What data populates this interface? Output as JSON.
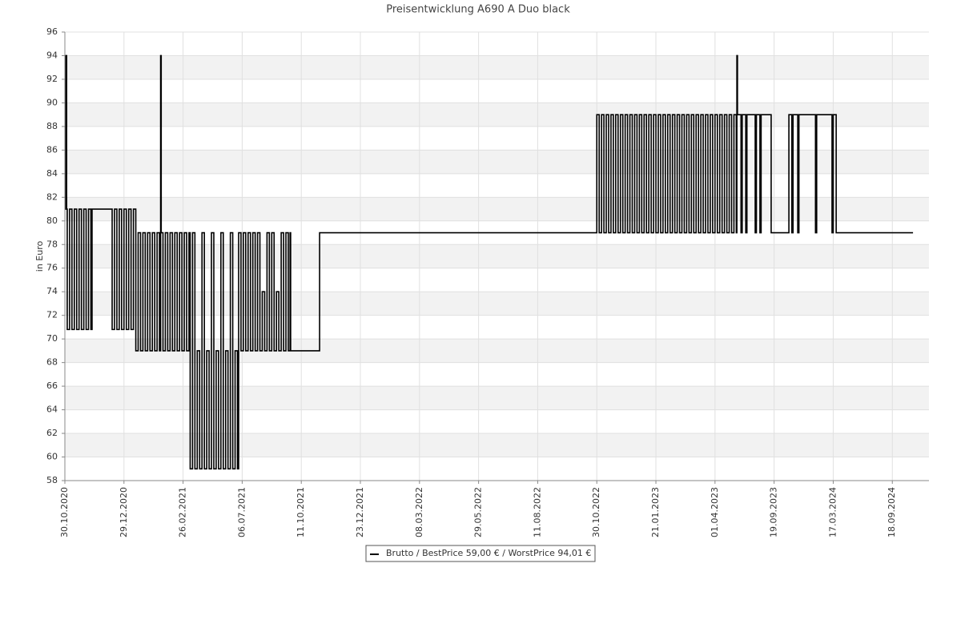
{
  "chart_data": {
    "type": "line",
    "step": true,
    "title": "Preisentwicklung A690 A Duo black",
    "y_label": "in Euro",
    "xlim": [
      0,
      14.62
    ],
    "ylim": [
      58,
      96
    ],
    "grid": true,
    "xticks": [
      {
        "value": 0,
        "label": "30.10.2020"
      },
      {
        "value": 1,
        "label": "29.12.2020"
      },
      {
        "value": 2,
        "label": "26.02.2021"
      },
      {
        "value": 3,
        "label": "06.07.2021"
      },
      {
        "value": 4,
        "label": "11.10.2021"
      },
      {
        "value": 5,
        "label": "23.12.2021"
      },
      {
        "value": 6,
        "label": "08.03.2022"
      },
      {
        "value": 7,
        "label": "29.05.2022"
      },
      {
        "value": 8,
        "label": "11.08.2022"
      },
      {
        "value": 9,
        "label": "30.10.2022"
      },
      {
        "value": 10,
        "label": "21.01.2023"
      },
      {
        "value": 11,
        "label": "01.04.2023"
      },
      {
        "value": 12,
        "label": "19.09.2023"
      },
      {
        "value": 13,
        "label": "17.03.2024"
      },
      {
        "value": 14,
        "label": "18.09.2024"
      }
    ],
    "yticks": [
      58,
      60,
      62,
      64,
      66,
      68,
      70,
      72,
      74,
      76,
      78,
      80,
      82,
      84,
      86,
      88,
      90,
      92,
      94,
      96
    ],
    "series": [
      {
        "name": "Brutto / BestPrice  59,00 € / WorstPrice  94,01 €",
        "color": "#000000",
        "x": [
          0,
          0.01,
          0.02,
          0.03,
          0.04,
          0.08,
          0.12,
          0.16,
          0.2,
          0.24,
          0.28,
          0.32,
          0.36,
          0.4,
          0.44,
          0.46,
          0.8,
          0.84,
          0.88,
          0.92,
          0.96,
          1,
          1.04,
          1.08,
          1.12,
          1.16,
          1.2,
          1.24,
          1.28,
          1.32,
          1.36,
          1.4,
          1.44,
          1.48,
          1.52,
          1.56,
          1.6,
          1.62,
          1.63,
          1.66,
          1.7,
          1.74,
          1.78,
          1.82,
          1.86,
          1.9,
          1.94,
          1.98,
          2.02,
          2.06,
          2.1,
          2.12,
          2.16,
          2.2,
          2.24,
          2.28,
          2.32,
          2.36,
          2.4,
          2.44,
          2.48,
          2.52,
          2.56,
          2.6,
          2.64,
          2.68,
          2.72,
          2.76,
          2.8,
          2.84,
          2.88,
          2.92,
          2.94,
          2.98,
          3.02,
          3.06,
          3.1,
          3.14,
          3.18,
          3.22,
          3.26,
          3.3,
          3.34,
          3.38,
          3.42,
          3.46,
          3.5,
          3.54,
          3.58,
          3.62,
          3.66,
          3.7,
          3.74,
          3.78,
          3.81,
          3.82,
          4.31,
          9,
          9.04,
          9.08,
          9.12,
          9.16,
          9.2,
          9.24,
          9.28,
          9.32,
          9.36,
          9.4,
          9.44,
          9.48,
          9.52,
          9.56,
          9.6,
          9.64,
          9.68,
          9.72,
          9.76,
          9.8,
          9.84,
          9.88,
          9.92,
          9.96,
          10,
          10.04,
          10.08,
          10.12,
          10.16,
          10.2,
          10.24,
          10.28,
          10.32,
          10.36,
          10.4,
          10.44,
          10.48,
          10.52,
          10.56,
          10.6,
          10.64,
          10.68,
          10.72,
          10.76,
          10.8,
          10.84,
          10.88,
          10.92,
          10.96,
          11,
          11.04,
          11.08,
          11.12,
          11.16,
          11.2,
          11.24,
          11.28,
          11.32,
          11.36,
          11.37,
          11.38,
          11.44,
          11.46,
          11.52,
          11.54,
          11.68,
          11.7,
          11.76,
          11.78,
          11.95,
          12.25,
          12.3,
          12.32,
          12.4,
          12.42,
          12.7,
          12.72,
          12.98,
          13,
          13.05,
          14.35
        ],
        "values": [
          94,
          81,
          94,
          81,
          70.8,
          81,
          70.8,
          81,
          70.8,
          81,
          70.8,
          81,
          70.8,
          81,
          70.8,
          81,
          70.8,
          81,
          70.8,
          81,
          70.8,
          81,
          70.8,
          81,
          70.8,
          81,
          69,
          79,
          69,
          79,
          69,
          79,
          69,
          79,
          69,
          79,
          69,
          94,
          79,
          69,
          79,
          69,
          79,
          69,
          79,
          69,
          79,
          69,
          79,
          69,
          79,
          59,
          79,
          59,
          69,
          59,
          79,
          59,
          69,
          59,
          79,
          59,
          69,
          59,
          79,
          59,
          69,
          59,
          79,
          59,
          69,
          59,
          79,
          69,
          79,
          69,
          79,
          69,
          79,
          69,
          79,
          69,
          74,
          69,
          79,
          69,
          79,
          69,
          74,
          69,
          79,
          69,
          79,
          69,
          79,
          69,
          79,
          89,
          79,
          89,
          79,
          89,
          79,
          89,
          79,
          89,
          79,
          89,
          79,
          89,
          79,
          89,
          79,
          89,
          79,
          89,
          79,
          89,
          79,
          89,
          79,
          89,
          79,
          89,
          79,
          89,
          79,
          89,
          79,
          89,
          79,
          89,
          79,
          89,
          79,
          89,
          79,
          89,
          79,
          89,
          79,
          89,
          79,
          89,
          79,
          89,
          79,
          89,
          79,
          89,
          79,
          89,
          79,
          89,
          79,
          89,
          79,
          94,
          89,
          79,
          89,
          79,
          89,
          79,
          89,
          79,
          89,
          79,
          89,
          79,
          89,
          79,
          89,
          79,
          89,
          79,
          89,
          79,
          79
        ]
      }
    ]
  }
}
